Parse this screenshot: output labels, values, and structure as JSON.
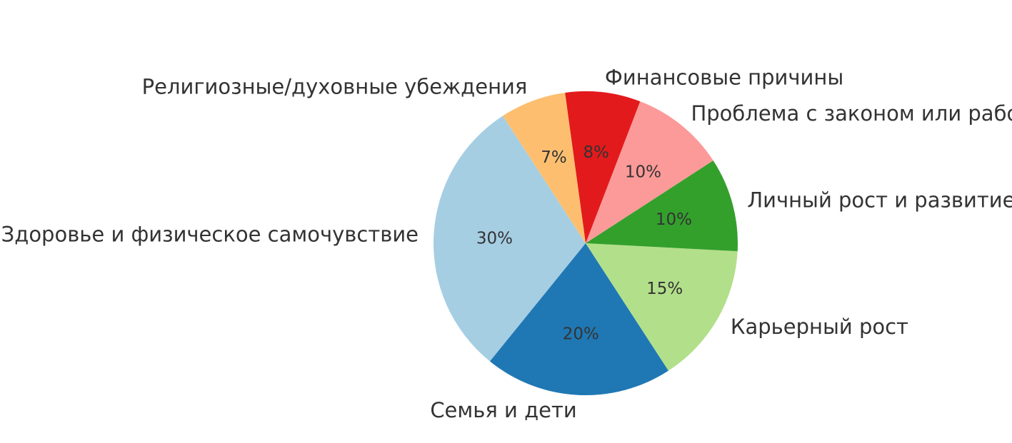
{
  "chart_data": {
    "type": "pie",
    "categories": [
      "Здоровье и физическое самочувствие",
      "Семья и дети",
      "Карьерный рост",
      "Личный рост и развитие",
      "Проблема с законом или работой",
      "Финансовые причины",
      "Религиозные/духовные убеждения"
    ],
    "values": [
      30,
      20,
      15,
      10,
      10,
      8,
      7
    ],
    "percent_labels": [
      "30%",
      "20%",
      "15%",
      "10%",
      "10%",
      "8%",
      "7%"
    ],
    "colors": [
      "#a6cee3",
      "#1f78b4",
      "#b2df8a",
      "#33a02c",
      "#fb9a99",
      "#e31a1c",
      "#fdbf6f"
    ],
    "start_angle_deg": 123,
    "direction": "counterclockwise"
  }
}
